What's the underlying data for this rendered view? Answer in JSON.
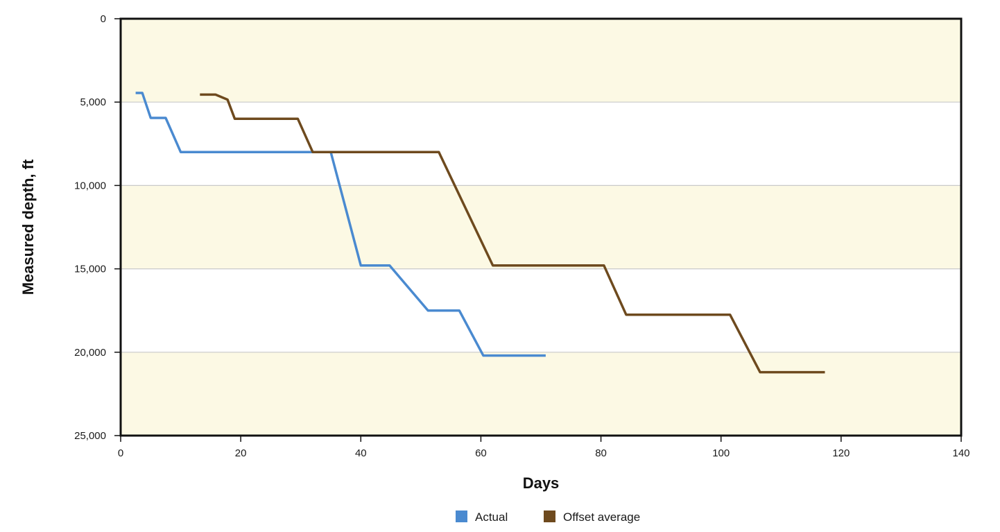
{
  "chart_data": {
    "type": "line",
    "xlabel": "Days",
    "ylabel": "Measured depth, ft",
    "xlim": [
      0,
      140
    ],
    "ylim": [
      0,
      25000
    ],
    "y_inverted": true,
    "x_ticks": [
      {
        "value": 0,
        "label": "0"
      },
      {
        "value": 20,
        "label": "20"
      },
      {
        "value": 40,
        "label": "40"
      },
      {
        "value": 60,
        "label": "60"
      },
      {
        "value": 80,
        "label": "80"
      },
      {
        "value": 100,
        "label": "100"
      },
      {
        "value": 120,
        "label": "120"
      },
      {
        "value": 140,
        "label": "140"
      }
    ],
    "y_ticks": [
      {
        "value": 0,
        "label": "0"
      },
      {
        "value": 5000,
        "label": "5,000"
      },
      {
        "value": 10000,
        "label": "10,000"
      },
      {
        "value": 15000,
        "label": "15,000"
      },
      {
        "value": 20000,
        "label": "20,000"
      },
      {
        "value": 25000,
        "label": "25,000"
      }
    ],
    "grid": "horizontal",
    "band_colors": [
      "#fcf9e4",
      "#ffffff"
    ],
    "legend_position": "bottom-center",
    "series": [
      {
        "name": "Actual",
        "color": "#4a8ad0",
        "points": [
          [
            2.5,
            4450
          ],
          [
            3.6,
            4450
          ],
          [
            5.0,
            5950
          ],
          [
            7.5,
            5950
          ],
          [
            10.0,
            8000
          ],
          [
            35.0,
            8000
          ],
          [
            40.0,
            14800
          ],
          [
            44.8,
            14800
          ],
          [
            51.2,
            17500
          ],
          [
            56.4,
            17500
          ],
          [
            60.4,
            20200
          ],
          [
            70.8,
            20200
          ]
        ]
      },
      {
        "name": "Offset average",
        "color": "#6e4a1e",
        "points": [
          [
            13.2,
            4550
          ],
          [
            15.8,
            4550
          ],
          [
            17.8,
            4850
          ],
          [
            19.0,
            6000
          ],
          [
            29.5,
            6000
          ],
          [
            32.0,
            8000
          ],
          [
            53.0,
            8000
          ],
          [
            62.0,
            14800
          ],
          [
            80.5,
            14800
          ],
          [
            84.2,
            17750
          ],
          [
            101.5,
            17750
          ],
          [
            106.5,
            21200
          ],
          [
            117.3,
            21200
          ]
        ]
      }
    ]
  }
}
